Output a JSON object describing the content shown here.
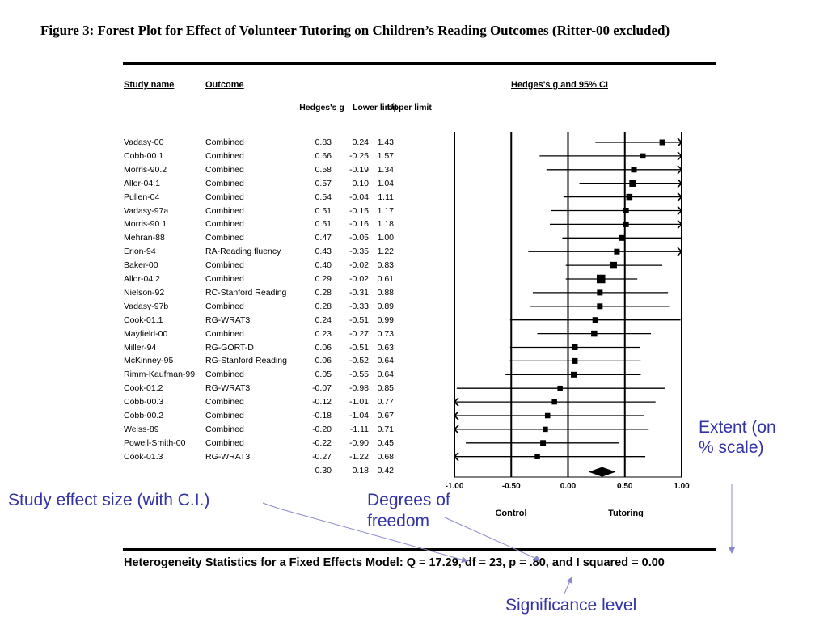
{
  "figure_title": "Figure 3:  Forest Plot for Effect of Volunteer Tutoring on Children’s Reading Outcomes (Ritter-00 excluded)",
  "headers": {
    "study_name": "Study name",
    "outcome": "Outcome",
    "plot_title": "Hedges's g and 95% CI",
    "g": "Hedges's g",
    "lower": "Lower limit",
    "upper": "Upper limit"
  },
  "rows": [
    {
      "study": "Vadasy-00",
      "outcome": "Combined",
      "g": "0.83",
      "lower": "0.24",
      "upper": "1.43"
    },
    {
      "study": "Cobb-00.1",
      "outcome": "Combined",
      "g": "0.66",
      "lower": "-0.25",
      "upper": "1.57"
    },
    {
      "study": "Morris-90.2",
      "outcome": "Combined",
      "g": "0.58",
      "lower": "-0.19",
      "upper": "1.34"
    },
    {
      "study": "Allor-04.1",
      "outcome": "Combined",
      "g": "0.57",
      "lower": "0.10",
      "upper": "1.04"
    },
    {
      "study": "Pullen-04",
      "outcome": "Combined",
      "g": "0.54",
      "lower": "-0.04",
      "upper": "1.11"
    },
    {
      "study": "Vadasy-97a",
      "outcome": "Combined",
      "g": "0.51",
      "lower": "-0.15",
      "upper": "1.17"
    },
    {
      "study": "Morris-90.1",
      "outcome": "Combined",
      "g": "0.51",
      "lower": "-0.16",
      "upper": "1.18"
    },
    {
      "study": "Mehran-88",
      "outcome": "Combined",
      "g": "0.47",
      "lower": "-0.05",
      "upper": "1.00"
    },
    {
      "study": "Erion-94",
      "outcome": "RA-Reading fluency",
      "g": "0.43",
      "lower": "-0.35",
      "upper": "1.22"
    },
    {
      "study": "Baker-00",
      "outcome": "Combined",
      "g": "0.40",
      "lower": "-0.02",
      "upper": "0.83"
    },
    {
      "study": "Allor-04.2",
      "outcome": "Combined",
      "g": "0.29",
      "lower": "-0.02",
      "upper": "0.61"
    },
    {
      "study": "Nielson-92",
      "outcome": "RC-Stanford Reading",
      "g": "0.28",
      "lower": "-0.31",
      "upper": "0.88"
    },
    {
      "study": "Vadasy-97b",
      "outcome": "Combined",
      "g": "0.28",
      "lower": "-0.33",
      "upper": "0.89"
    },
    {
      "study": "Cook-01.1",
      "outcome": "RG-WRAT3",
      "g": "0.24",
      "lower": "-0.51",
      "upper": "0.99"
    },
    {
      "study": "Mayfield-00",
      "outcome": "Combined",
      "g": "0.23",
      "lower": "-0.27",
      "upper": "0.73"
    },
    {
      "study": "Miller-94",
      "outcome": "RG-GORT-D",
      "g": "0.06",
      "lower": "-0.51",
      "upper": "0.63"
    },
    {
      "study": "McKinney-95",
      "outcome": "RG-Stanford Reading",
      "g": "0.06",
      "lower": "-0.52",
      "upper": "0.64"
    },
    {
      "study": "Rimm-Kaufman-99",
      "outcome": "Combined",
      "g": "0.05",
      "lower": "-0.55",
      "upper": "0.64"
    },
    {
      "study": "Cook-01.2",
      "outcome": "RG-WRAT3",
      "g": "-0.07",
      "lower": "-0.98",
      "upper": "0.85"
    },
    {
      "study": "Cobb-00.3",
      "outcome": "Combined",
      "g": "-0.12",
      "lower": "-1.01",
      "upper": "0.77"
    },
    {
      "study": "Cobb-00.2",
      "outcome": "Combined",
      "g": "-0.18",
      "lower": "-1.04",
      "upper": "0.67"
    },
    {
      "study": "Weiss-89",
      "outcome": "Combined",
      "g": "-0.20",
      "lower": "-1.11",
      "upper": "0.71"
    },
    {
      "study": "Powell-Smith-00",
      "outcome": "Combined",
      "g": "-0.22",
      "lower": "-0.90",
      "upper": "0.45"
    },
    {
      "study": "Cook-01.3",
      "outcome": "RG-WRAT3",
      "g": "-0.27",
      "lower": "-1.22",
      "upper": "0.68"
    }
  ],
  "summary": {
    "g": "0.30",
    "lower": "0.18",
    "upper": "0.42"
  },
  "axis": {
    "ticks": [
      "-1.00",
      "-0.50",
      "0.00",
      "0.50",
      "1.00"
    ],
    "left_label": "Control",
    "right_label": "Tutoring"
  },
  "heterogeneity": "Heterogeneity Statistics for a Fixed Effects Model: Q = 17.29, df = 23, p = .80, and I squared = 0.00",
  "annotations": {
    "study_effect": "Study effect size (with C.I.)",
    "degrees_line1": "Degrees of",
    "degrees_line2": "freedom",
    "extent_line1": "Extent (on",
    "extent_line2": "% scale)",
    "significance": "Significance level"
  },
  "colors": {
    "annotation": "#3333a8",
    "arrow": "#8888cc"
  },
  "chart_data": {
    "type": "scatter",
    "subtype": "forest-plot",
    "title": "Hedges's g and 95% CI",
    "xlim": [
      -1.0,
      1.0
    ],
    "xticks": [
      -1.0,
      -0.5,
      0.0,
      0.5,
      1.0
    ],
    "xlabel_left": "Control",
    "xlabel_right": "Tutoring",
    "grid": false,
    "points": [
      {
        "label": "Vadasy-00",
        "g": 0.83,
        "lower": 0.24,
        "upper": 1.43,
        "weight": 0.6
      },
      {
        "label": "Cobb-00.1",
        "g": 0.66,
        "lower": -0.25,
        "upper": 1.57,
        "weight": 0.5
      },
      {
        "label": "Morris-90.2",
        "g": 0.58,
        "lower": -0.19,
        "upper": 1.34,
        "weight": 0.6
      },
      {
        "label": "Allor-04.1",
        "g": 0.57,
        "lower": 0.1,
        "upper": 1.04,
        "weight": 0.9
      },
      {
        "label": "Pullen-04",
        "g": 0.54,
        "lower": -0.04,
        "upper": 1.11,
        "weight": 0.7
      },
      {
        "label": "Vadasy-97a",
        "g": 0.51,
        "lower": -0.15,
        "upper": 1.17,
        "weight": 0.6
      },
      {
        "label": "Morris-90.1",
        "g": 0.51,
        "lower": -0.16,
        "upper": 1.18,
        "weight": 0.6
      },
      {
        "label": "Mehran-88",
        "g": 0.47,
        "lower": -0.05,
        "upper": 1.0,
        "weight": 0.6
      },
      {
        "label": "Erion-94",
        "g": 0.43,
        "lower": -0.35,
        "upper": 1.22,
        "weight": 0.6
      },
      {
        "label": "Baker-00",
        "g": 0.4,
        "lower": -0.02,
        "upper": 0.83,
        "weight": 0.9
      },
      {
        "label": "Allor-04.2",
        "g": 0.29,
        "lower": -0.02,
        "upper": 0.61,
        "weight": 1.3
      },
      {
        "label": "Nielson-92",
        "g": 0.28,
        "lower": -0.31,
        "upper": 0.88,
        "weight": 0.6
      },
      {
        "label": "Vadasy-97b",
        "g": 0.28,
        "lower": -0.33,
        "upper": 0.89,
        "weight": 0.6
      },
      {
        "label": "Cook-01.1",
        "g": 0.24,
        "lower": -0.51,
        "upper": 0.99,
        "weight": 0.6
      },
      {
        "label": "Mayfield-00",
        "g": 0.23,
        "lower": -0.27,
        "upper": 0.73,
        "weight": 0.7
      },
      {
        "label": "Miller-94",
        "g": 0.06,
        "lower": -0.51,
        "upper": 0.63,
        "weight": 0.6
      },
      {
        "label": "McKinney-95",
        "g": 0.06,
        "lower": -0.52,
        "upper": 0.64,
        "weight": 0.6
      },
      {
        "label": "Rimm-Kaufman-99",
        "g": 0.05,
        "lower": -0.55,
        "upper": 0.64,
        "weight": 0.6
      },
      {
        "label": "Cook-01.2",
        "g": -0.07,
        "lower": -0.98,
        "upper": 0.85,
        "weight": 0.5
      },
      {
        "label": "Cobb-00.3",
        "g": -0.12,
        "lower": -1.01,
        "upper": 0.77,
        "weight": 0.5
      },
      {
        "label": "Cobb-00.2",
        "g": -0.18,
        "lower": -1.04,
        "upper": 0.67,
        "weight": 0.5
      },
      {
        "label": "Weiss-89",
        "g": -0.2,
        "lower": -1.11,
        "upper": 0.71,
        "weight": 0.5
      },
      {
        "label": "Powell-Smith-00",
        "g": -0.22,
        "lower": -0.9,
        "upper": 0.45,
        "weight": 0.6
      },
      {
        "label": "Cook-01.3",
        "g": -0.27,
        "lower": -1.22,
        "upper": 0.68,
        "weight": 0.5
      }
    ],
    "summary": {
      "g": 0.3,
      "lower": 0.18,
      "upper": 0.42
    }
  }
}
